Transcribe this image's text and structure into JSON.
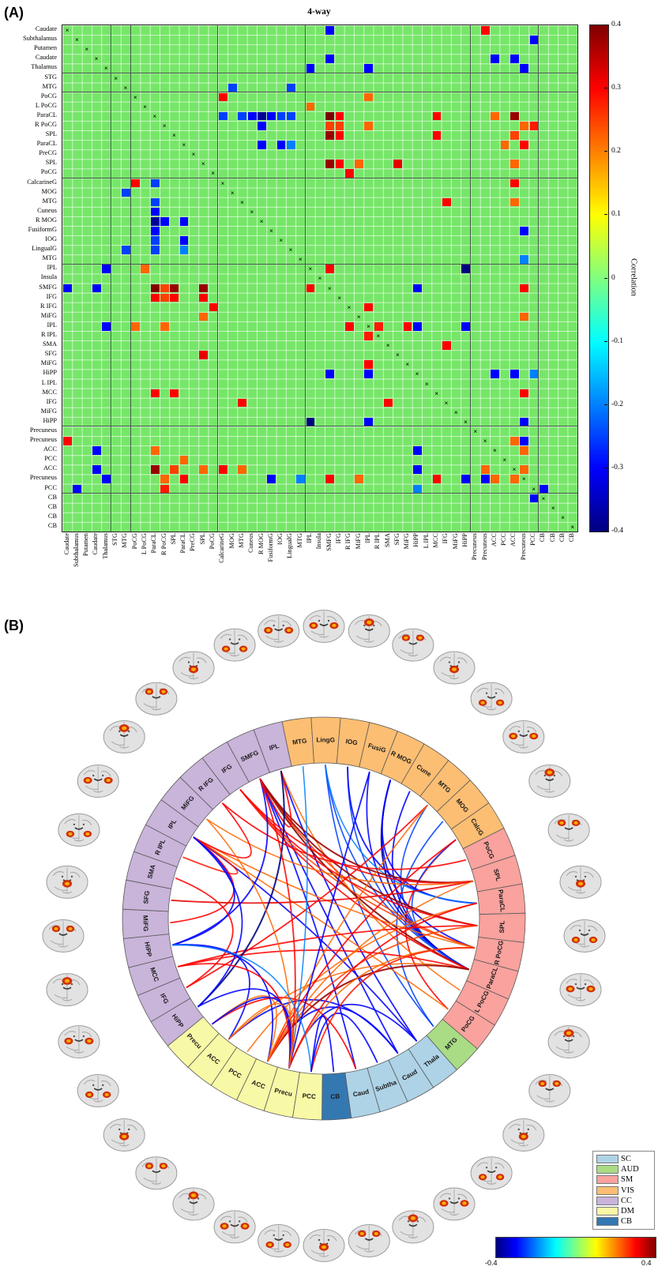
{
  "figure": {
    "panel_a_label": "(A)",
    "panel_b_label": "(B)"
  },
  "panel_a": {
    "title": "4-way",
    "regions": [
      "Caudate",
      "Subthalamus",
      "Putamen",
      "Caudate",
      "Thalamus",
      "STG",
      "MTG",
      "PoCG",
      "L PoCG",
      "ParaCL",
      "R PoCG",
      "SPL",
      "ParaCL",
      "PreCG",
      "SPL",
      "PoCG",
      "CalcarineG",
      "MOG",
      "MTG",
      "Cuneus",
      "R MOG",
      "FusiformG",
      "IOG",
      "LingualG",
      "MTG",
      "IPL",
      "Insula",
      "SMFG",
      "IFG",
      "R IFG",
      "MiFG",
      "IPL",
      "R IPL",
      "SMA",
      "SFG",
      "MiFG",
      "HiPP",
      "L IPL",
      "MCC",
      "IFG",
      "MiFG",
      "HiPP",
      "Precuneus",
      "Precuneus",
      "ACC",
      "PCC",
      "ACC",
      "Precuneus",
      "PCC",
      "CB",
      "CB",
      "CB",
      "CB"
    ],
    "group_boundaries": [
      5,
      7,
      16,
      25,
      42,
      49
    ],
    "colorbar": {
      "label": "Correlation",
      "ticks": [
        "0.4",
        "0.3",
        "0.2",
        "0.1",
        "0",
        "-0.1",
        "-0.2",
        "-0.3",
        "-0.4"
      ]
    }
  },
  "panel_b": {
    "legend": [
      {
        "label": "SC",
        "color": "#aed3e6"
      },
      {
        "label": "AUD",
        "color": "#a9dc84"
      },
      {
        "label": "SM",
        "color": "#f9a29e"
      },
      {
        "label": "VIS",
        "color": "#fcbe72"
      },
      {
        "label": "CC",
        "color": "#c9b4da"
      },
      {
        "label": "DM",
        "color": "#f8f9a6"
      },
      {
        "label": "CB",
        "color": "#3478b2"
      }
    ],
    "colorbar": {
      "min": "-0.4",
      "max": "0.4"
    },
    "brain_count": 36,
    "ring_segments": [
      {
        "label": "MTG",
        "group": "VIS",
        "region_index": 24
      },
      {
        "label": "LingG",
        "group": "VIS",
        "region_index": 23
      },
      {
        "label": "IOG",
        "group": "VIS",
        "region_index": 22
      },
      {
        "label": "FusiG",
        "group": "VIS",
        "region_index": 21
      },
      {
        "label": "R MOG",
        "group": "VIS",
        "region_index": 20
      },
      {
        "label": "Cune",
        "group": "VIS",
        "region_index": 19
      },
      {
        "label": "MTG",
        "group": "VIS",
        "region_index": 18
      },
      {
        "label": "MOG",
        "group": "VIS",
        "region_index": 17
      },
      {
        "label": "CalcG",
        "group": "VIS",
        "region_index": 16
      },
      {
        "label": "PoCG",
        "group": "SM",
        "region_index": 15
      },
      {
        "label": "SPL",
        "group": "SM",
        "region_index": 14
      },
      {
        "label": "ParaCL",
        "group": "SM",
        "region_index": 12
      },
      {
        "label": "SPL",
        "group": "SM",
        "region_index": 11
      },
      {
        "label": "R PoCG",
        "group": "SM",
        "region_index": 10
      },
      {
        "label": "ParaCL",
        "group": "SM",
        "region_index": 9
      },
      {
        "label": "L PoCG",
        "group": "SM",
        "region_index": 8
      },
      {
        "label": "PoCG",
        "group": "SM",
        "region_index": 7
      },
      {
        "label": "MTG",
        "group": "AUD",
        "region_index": 6
      },
      {
        "label": "Thala",
        "group": "SC",
        "region_index": 4
      },
      {
        "label": "Caud",
        "group": "SC",
        "region_index": 3
      },
      {
        "label": "Subtha",
        "group": "SC",
        "region_index": 1
      },
      {
        "label": "Caud",
        "group": "SC",
        "region_index": 0
      },
      {
        "label": "CB",
        "group": "CB",
        "region_index": 49
      },
      {
        "label": "PCC",
        "group": "DM",
        "region_index": 48
      },
      {
        "label": "Precu",
        "group": "DM",
        "region_index": 47
      },
      {
        "label": "ACC",
        "group": "DM",
        "region_index": 46
      },
      {
        "label": "PCC",
        "group": "DM",
        "region_index": 45
      },
      {
        "label": "ACC",
        "group": "DM",
        "region_index": 44
      },
      {
        "label": "Precu",
        "group": "DM",
        "region_index": 43
      },
      {
        "label": "HiPP",
        "group": "CC",
        "region_index": 41
      },
      {
        "label": "IFG",
        "group": "CC",
        "region_index": 39
      },
      {
        "label": "MCC",
        "group": "CC",
        "region_index": 38
      },
      {
        "label": "HiPP",
        "group": "CC",
        "region_index": 36
      },
      {
        "label": "MiFG",
        "group": "CC",
        "region_index": 35
      },
      {
        "label": "SFG",
        "group": "CC",
        "region_index": 34
      },
      {
        "label": "SMA",
        "group": "CC",
        "region_index": 33
      },
      {
        "label": "R IPL",
        "group": "CC",
        "region_index": 32
      },
      {
        "label": "IPL",
        "group": "CC",
        "region_index": 31
      },
      {
        "label": "MiFG",
        "group": "CC",
        "region_index": 30
      },
      {
        "label": "R IFG",
        "group": "CC",
        "region_index": 29
      },
      {
        "label": "IFG",
        "group": "CC",
        "region_index": 28
      },
      {
        "label": "SMFG",
        "group": "CC",
        "region_index": 27
      },
      {
        "label": "IPL",
        "group": "CC",
        "region_index": 25
      }
    ]
  },
  "chart_data": [
    {
      "type": "heatmap",
      "title": "4-way",
      "colorbar_label": "Correlation",
      "value_range": [
        -0.4,
        0.4
      ],
      "grid": true,
      "symmetric": true,
      "diagonal_marker": "x",
      "background_value_color": "#76e668",
      "axis_labels": "see panel_a.regions (same 53 labels on both axes)",
      "cells": [
        [
          0,
          27,
          -0.3
        ],
        [
          0,
          43,
          0.3
        ],
        [
          1,
          48,
          -0.3
        ],
        [
          3,
          27,
          -0.3
        ],
        [
          3,
          44,
          -0.3
        ],
        [
          3,
          46,
          -0.3
        ],
        [
          4,
          25,
          -0.3
        ],
        [
          4,
          31,
          -0.3
        ],
        [
          4,
          47,
          -0.3
        ],
        [
          6,
          17,
          -0.25
        ],
        [
          6,
          23,
          -0.25
        ],
        [
          7,
          16,
          0.3
        ],
        [
          7,
          31,
          0.22
        ],
        [
          8,
          25,
          0.22
        ],
        [
          9,
          16,
          -0.25
        ],
        [
          9,
          18,
          -0.25
        ],
        [
          9,
          19,
          -0.3
        ],
        [
          9,
          20,
          -0.38
        ],
        [
          9,
          21,
          -0.3
        ],
        [
          9,
          22,
          -0.25
        ],
        [
          9,
          23,
          -0.25
        ],
        [
          9,
          27,
          0.4
        ],
        [
          9,
          28,
          0.3
        ],
        [
          9,
          38,
          0.3
        ],
        [
          9,
          44,
          0.22
        ],
        [
          9,
          46,
          0.38
        ],
        [
          10,
          20,
          -0.3
        ],
        [
          10,
          27,
          0.25
        ],
        [
          10,
          28,
          0.25
        ],
        [
          10,
          31,
          0.22
        ],
        [
          10,
          47,
          0.22
        ],
        [
          10,
          48,
          0.28
        ],
        [
          11,
          27,
          0.38
        ],
        [
          11,
          28,
          0.3
        ],
        [
          11,
          38,
          0.3
        ],
        [
          11,
          46,
          0.25
        ],
        [
          12,
          20,
          -0.3
        ],
        [
          12,
          22,
          -0.3
        ],
        [
          12,
          23,
          -0.2
        ],
        [
          12,
          45,
          0.22
        ],
        [
          12,
          47,
          0.3
        ],
        [
          14,
          27,
          0.38
        ],
        [
          14,
          28,
          0.3
        ],
        [
          14,
          30,
          0.22
        ],
        [
          14,
          34,
          0.32
        ],
        [
          14,
          46,
          0.22
        ],
        [
          15,
          29,
          0.3
        ],
        [
          16,
          46,
          0.3
        ],
        [
          18,
          39,
          0.3
        ],
        [
          18,
          46,
          0.22
        ],
        [
          21,
          47,
          -0.3
        ],
        [
          24,
          47,
          -0.2
        ],
        [
          25,
          27,
          0.3
        ],
        [
          25,
          41,
          -0.4
        ],
        [
          27,
          36,
          -0.3
        ],
        [
          27,
          47,
          0.3
        ],
        [
          29,
          31,
          0.3
        ],
        [
          30,
          47,
          0.22
        ],
        [
          31,
          32,
          0.28
        ],
        [
          31,
          35,
          0.3
        ],
        [
          31,
          36,
          -0.3
        ],
        [
          31,
          41,
          -0.3
        ],
        [
          33,
          39,
          0.3
        ],
        [
          36,
          44,
          -0.3
        ],
        [
          36,
          46,
          -0.3
        ],
        [
          36,
          48,
          -0.2
        ],
        [
          38,
          47,
          0.3
        ],
        [
          41,
          47,
          -0.3
        ],
        [
          43,
          46,
          0.22
        ],
        [
          43,
          47,
          -0.3
        ],
        [
          44,
          47,
          0.22
        ],
        [
          46,
          47,
          0.22
        ],
        [
          48,
          49,
          -0.3
        ]
      ]
    },
    {
      "type": "chord",
      "segments": "see panel_b.ring_segments (43 segments, clockwise from top)",
      "connections": "same correlations as chart_data[0].cells; red = positive, blue = negative",
      "value_range": [
        -0.4,
        0.4
      ]
    }
  ]
}
